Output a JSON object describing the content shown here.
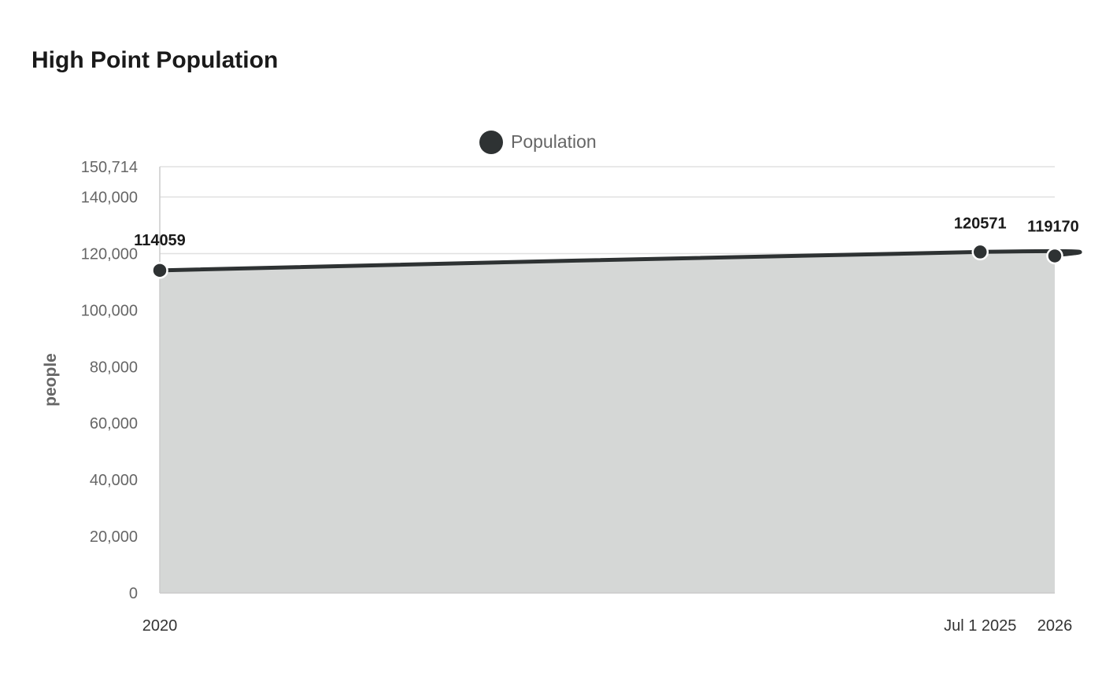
{
  "chart_data": {
    "type": "area",
    "title": "High Point Population",
    "ylabel": "people",
    "xlabel": "",
    "categories": [
      "2020",
      "Jul 1 2025",
      "2026"
    ],
    "x_positions": [
      2020.0,
      2025.5,
      2026.0
    ],
    "series": [
      {
        "name": "Population",
        "values": [
          114059,
          120571,
          119170
        ],
        "data_labels": [
          "114059",
          "120571",
          "119170"
        ]
      }
    ],
    "ylim": [
      0,
      150714
    ],
    "yticks": [
      0,
      20000,
      40000,
      60000,
      80000,
      100000,
      120000,
      140000,
      150714
    ],
    "ytick_labels": [
      "0",
      "20,000",
      "40,000",
      "60,000",
      "80,000",
      "100,000",
      "120,000",
      "140,000",
      "150,714"
    ],
    "legend_position": "top-center",
    "grid": true,
    "colors": {
      "line": "#2e3233",
      "fill": "#d5d7d6",
      "grid": "#e0e0e0",
      "axis": "#cccccc"
    }
  }
}
